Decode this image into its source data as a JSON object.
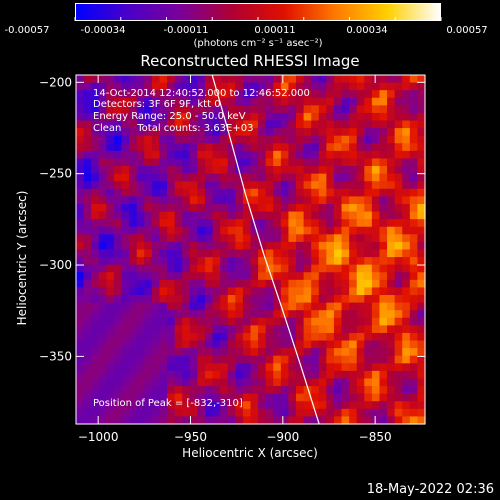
{
  "chart_data": {
    "type": "heatmap",
    "title": "Reconstructed RHESSI Image",
    "xlabel": "Heliocentric X (arcsec)",
    "ylabel": "Heliocentric Y (arcsec)",
    "xlim": [
      -1012,
      -823
    ],
    "ylim": [
      -387,
      -196
    ],
    "x_ticks": [
      -1000,
      -950,
      -900,
      -850
    ],
    "y_ticks": [
      -250,
      -300,
      -350
    ],
    "y_tick_extra": -200,
    "colorbar": {
      "tick_labels": [
        "-0.00057",
        "-0.00034",
        "-0.00011",
        "0.00011",
        "0.00034",
        "0.00057"
      ],
      "range": [
        -0.00057,
        0.00057
      ],
      "units": "(photons cm⁻² s⁻¹ asec⁻²)",
      "colors": [
        "#0000ff",
        "#4b00c8",
        "#7a0099",
        "#b00033",
        "#e01000",
        "#ff7a00",
        "#ffd000",
        "#ffffff"
      ]
    },
    "limb_curve": {
      "x": [
        -940,
        -930,
        -920,
        -910,
        -900,
        -890,
        -880
      ],
      "y": [
        -190,
        -225,
        -262,
        -295,
        -325,
        -356,
        -388
      ]
    },
    "annotations": [
      "14-Oct-2014 12:40:52.000 to 12:46:52.000",
      "Detectors: 3F 6F 9F, ktt 0",
      "Energy Range: 25.0 - 50.0 keV",
      "Clean     Total counts: 3.63E+03"
    ],
    "peak_text": "Position of Peak = [-832,-310]"
  },
  "footer": "18-May-2022 02:36"
}
